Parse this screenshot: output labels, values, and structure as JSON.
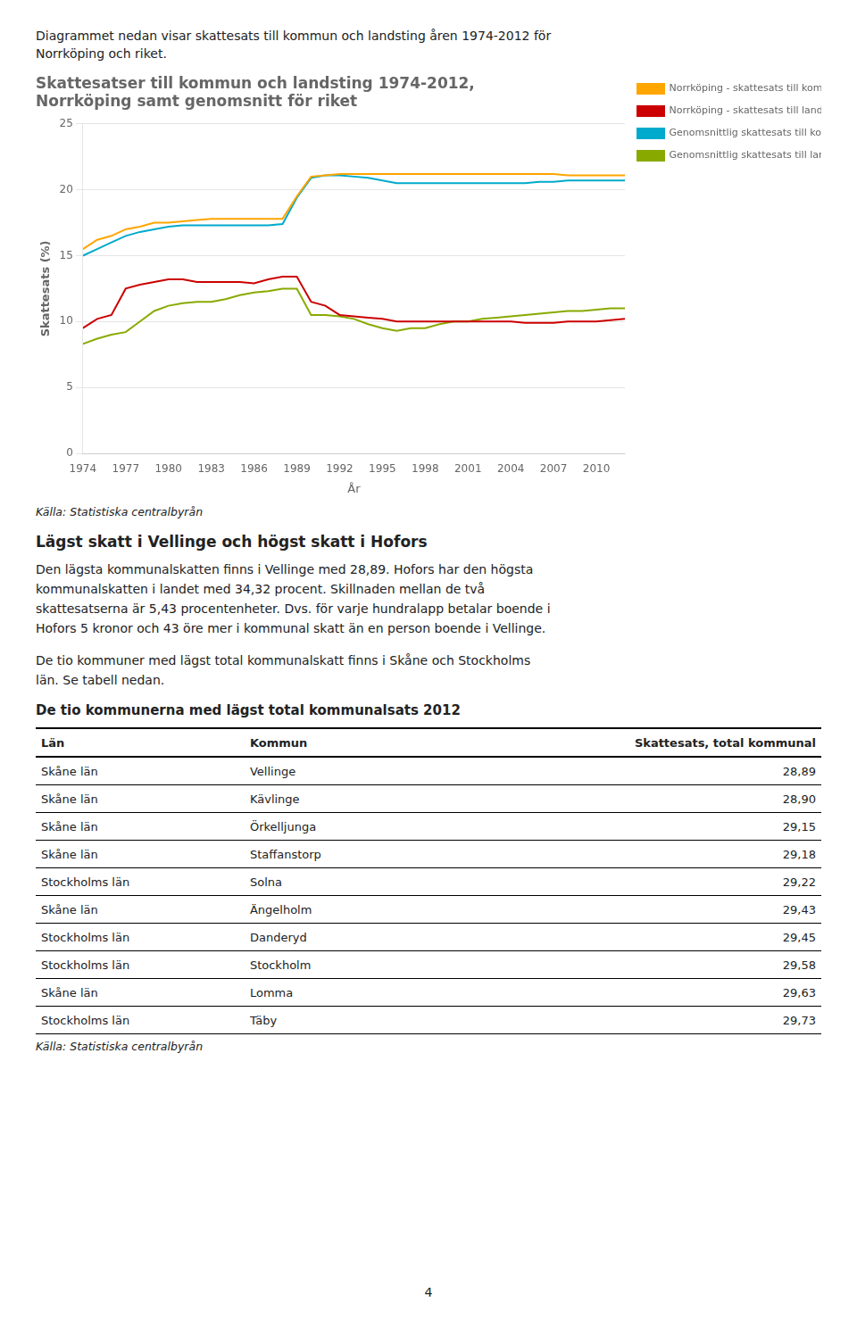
{
  "intro": [
    "Diagrammet nedan visar skattesats till kommun och landsting åren 1974-2012 för",
    "Norrköping och riket."
  ],
  "chart_data": {
    "type": "line",
    "title": [
      "Skattesatser till kommun och landsting 1974-2012,",
      "Norrköping samt genomsnitt för riket"
    ],
    "y_label": "Skattesats (%)",
    "x_label": "År",
    "x": [
      1974,
      1975,
      1976,
      1977,
      1978,
      1979,
      1980,
      1981,
      1982,
      1983,
      1984,
      1985,
      1986,
      1987,
      1988,
      1989,
      1990,
      1991,
      1992,
      1993,
      1994,
      1995,
      1996,
      1997,
      1998,
      1999,
      2000,
      2001,
      2002,
      2003,
      2004,
      2005,
      2006,
      2007,
      2008,
      2009,
      2010,
      2011,
      2012
    ],
    "series": [
      {
        "name": "Norrköping - skattesats till kommun",
        "color": "#FFA500",
        "values": [
          15.5,
          16.2,
          16.5,
          17.0,
          17.2,
          17.5,
          17.5,
          17.6,
          17.7,
          17.8,
          17.8,
          17.8,
          17.8,
          17.8,
          17.8,
          19.5,
          21.0,
          21.1,
          21.2,
          21.2,
          21.2,
          21.2,
          21.2,
          21.2,
          21.2,
          21.2,
          21.2,
          21.2,
          21.2,
          21.2,
          21.2,
          21.2,
          21.2,
          21.2,
          21.1,
          21.1,
          21.1,
          21.1,
          21.1
        ]
      },
      {
        "name": "Norrköping - skattesats till landstinget",
        "color": "#CC0000",
        "values": [
          9.5,
          10.2,
          10.5,
          12.5,
          12.8,
          13.0,
          13.2,
          13.2,
          13.0,
          13.0,
          13.0,
          13.0,
          12.9,
          13.2,
          13.4,
          13.4,
          11.5,
          11.2,
          10.5,
          10.4,
          10.3,
          10.2,
          10.0,
          10.0,
          10.0,
          10.0,
          10.0,
          10.0,
          10.0,
          10.0,
          10.0,
          9.9,
          9.9,
          9.9,
          10.0,
          10.0,
          10.0,
          10.1,
          10.2
        ]
      },
      {
        "name": "Genomsnittlig skattesats till kommun",
        "color": "#00AACC",
        "values": [
          15.0,
          15.5,
          16.0,
          16.5,
          16.8,
          17.0,
          17.2,
          17.3,
          17.3,
          17.3,
          17.3,
          17.3,
          17.3,
          17.3,
          17.4,
          19.4,
          20.9,
          21.1,
          21.1,
          21.0,
          20.9,
          20.7,
          20.5,
          20.5,
          20.5,
          20.5,
          20.5,
          20.5,
          20.5,
          20.5,
          20.5,
          20.5,
          20.6,
          20.6,
          20.7,
          20.7,
          20.7,
          20.7,
          20.7
        ]
      },
      {
        "name": "Genomsnittlig skattesats till landsting",
        "color": "#88AA00",
        "values": [
          8.3,
          8.7,
          9.0,
          9.2,
          10.0,
          10.8,
          11.2,
          11.4,
          11.5,
          11.5,
          11.7,
          12.0,
          12.2,
          12.3,
          12.5,
          12.5,
          10.5,
          10.5,
          10.4,
          10.2,
          9.8,
          9.5,
          9.3,
          9.5,
          9.5,
          9.8,
          10.0,
          10.0,
          10.2,
          10.3,
          10.4,
          10.5,
          10.6,
          10.7,
          10.8,
          10.8,
          10.9,
          11.0,
          11.0
        ]
      }
    ],
    "xlim": [
      1974,
      2012
    ],
    "xticks": [
      1974,
      1977,
      1980,
      1983,
      1986,
      1989,
      1992,
      1995,
      1998,
      2001,
      2004,
      2007,
      2010
    ],
    "ylim": [
      0,
      25
    ],
    "yticks": [
      0,
      5,
      10,
      15,
      20,
      25
    ],
    "grid": "y",
    "legend": "right",
    "source": "Källa: Statistiska centralbyrån"
  },
  "section_title": "Lägst skatt i Vellinge och högst skatt i Hofors",
  "body": [
    [
      "Den lägsta kommunalskatten finns i Vellinge med 28,89. Hofors har den högsta",
      "kommunalskatten i landet med 34,32 procent. Skillnaden mellan de två",
      "skattesatserna är 5,43 procentenheter. Dvs. för varje hundralapp betalar boende i",
      "Hofors 5 kronor och 43 öre mer i kommunal skatt än en person boende i Vellinge."
    ],
    [
      "De tio kommuner med lägst total kommunalskatt finns i Skåne och Stockholms",
      "län. Se tabell nedan."
    ]
  ],
  "table": {
    "title": "De tio kommunerna med lägst total kommunalsats 2012",
    "headers": [
      "Län",
      "Kommun",
      "Skattesats, total kommunal"
    ],
    "rows": [
      [
        "Skåne län",
        "Vellinge",
        "28,89"
      ],
      [
        "Skåne län",
        "Kävlinge",
        "28,90"
      ],
      [
        "Skåne län",
        "Örkelljunga",
        "29,15"
      ],
      [
        "Skåne län",
        "Staffanstorp",
        "29,18"
      ],
      [
        "Stockholms län",
        "Solna",
        "29,22"
      ],
      [
        "Skåne län",
        "Ängelholm",
        "29,43"
      ],
      [
        "Stockholms län",
        "Danderyd",
        "29,45"
      ],
      [
        "Stockholms län",
        "Stockholm",
        "29,58"
      ],
      [
        "Skåne län",
        "Lomma",
        "29,63"
      ],
      [
        "Stockholms län",
        "Täby",
        "29,73"
      ]
    ],
    "source": "Källa: Statistiska centralbyrån"
  },
  "page_number": "4"
}
